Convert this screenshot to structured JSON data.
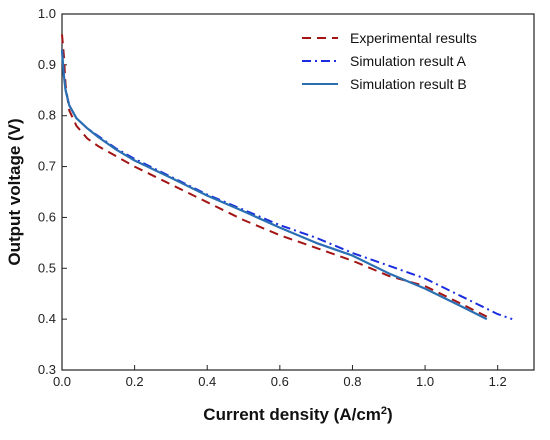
{
  "chart_data": {
    "type": "line",
    "title": "",
    "xlabel": "Current density (A/cm",
    "xlabel_sup": "2",
    "xlabel_tail": ")",
    "ylabel": "Output voltage (V)",
    "xlim": [
      0,
      1.3
    ],
    "ylim": [
      0.3,
      1.0
    ],
    "xticks": [
      0,
      0.2,
      0.4,
      0.6,
      0.8,
      1.0,
      1.2
    ],
    "xtick_labels": [
      "0.0",
      "0.2",
      "0.4",
      "0.6",
      "0.8",
      "1.0",
      "1.2"
    ],
    "yticks": [
      0.3,
      0.4,
      0.5,
      0.6,
      0.7,
      0.8,
      0.9,
      1.0
    ],
    "ytick_labels": [
      "0.3",
      "0.4",
      "0.5",
      "0.6",
      "0.7",
      "0.8",
      "0.9",
      "1.0"
    ],
    "grid": false,
    "legend_position": "top-right",
    "series": [
      {
        "name": "Experimental results",
        "color": "#a31515",
        "dash": "dashed",
        "x": [
          0.0,
          0.005,
          0.01,
          0.02,
          0.04,
          0.07,
          0.1,
          0.15,
          0.2,
          0.3,
          0.4,
          0.5,
          0.6,
          0.7,
          0.8,
          0.9,
          1.0,
          1.1,
          1.17
        ],
        "y": [
          0.96,
          0.92,
          0.86,
          0.81,
          0.78,
          0.755,
          0.74,
          0.72,
          0.7,
          0.665,
          0.63,
          0.595,
          0.565,
          0.54,
          0.515,
          0.485,
          0.465,
          0.43,
          0.405
        ]
      },
      {
        "name": "Simulation result A",
        "color": "#1a2ee0",
        "dash": "dashdot",
        "x": [
          0.0,
          0.005,
          0.01,
          0.02,
          0.04,
          0.07,
          0.1,
          0.15,
          0.2,
          0.3,
          0.4,
          0.5,
          0.6,
          0.7,
          0.8,
          0.9,
          1.0,
          1.1,
          1.2,
          1.24
        ],
        "y": [
          0.93,
          0.88,
          0.85,
          0.82,
          0.795,
          0.775,
          0.76,
          0.735,
          0.715,
          0.68,
          0.645,
          0.615,
          0.585,
          0.56,
          0.53,
          0.505,
          0.48,
          0.445,
          0.41,
          0.4
        ]
      },
      {
        "name": "Simulation result B",
        "color": "#2b6fb3",
        "dash": "solid",
        "x": [
          0.0,
          0.005,
          0.01,
          0.02,
          0.04,
          0.07,
          0.1,
          0.15,
          0.2,
          0.3,
          0.4,
          0.5,
          0.6,
          0.7,
          0.8,
          0.9,
          1.0,
          1.1,
          1.17
        ],
        "y": [
          0.93,
          0.88,
          0.85,
          0.82,
          0.795,
          0.775,
          0.758,
          0.733,
          0.712,
          0.678,
          0.643,
          0.612,
          0.58,
          0.55,
          0.525,
          0.49,
          0.46,
          0.425,
          0.4
        ]
      }
    ]
  }
}
